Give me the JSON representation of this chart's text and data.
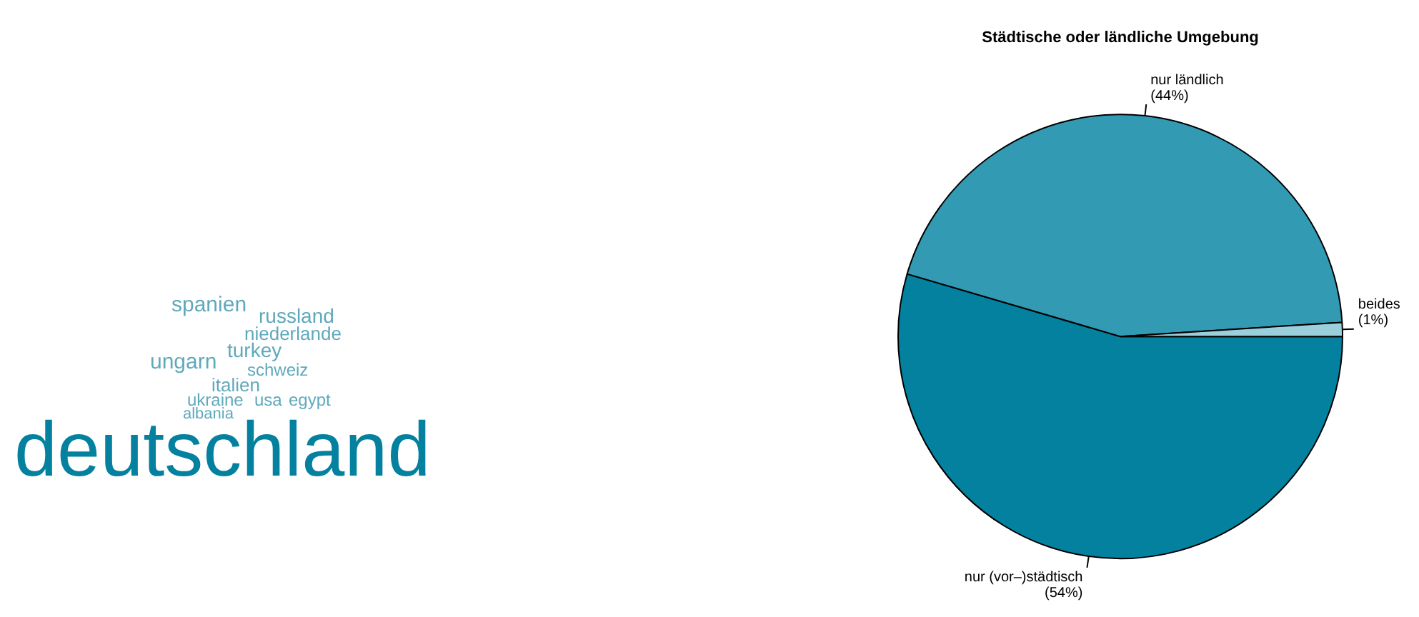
{
  "chart_data": [
    {
      "type": "other",
      "annotations": [
        "spanien",
        "russland",
        "niederlande",
        "turkey",
        "ungarn",
        "schweiz",
        "italien",
        "ukraine",
        "usa",
        "egypt",
        "albania",
        "deutschland"
      ]
    },
    {
      "type": "pie",
      "title": "Städtische oder ländliche Umgebung",
      "categories": [
        "nur (vor–)städtisch",
        "nur ländlich",
        "beides"
      ],
      "values": [
        54,
        44,
        1
      ],
      "colors": [
        "#03819f",
        "#339ab4",
        "#9ccfdc"
      ],
      "value_labels": [
        "(54%)",
        "(44%)",
        "(1%)"
      ],
      "legend": false
    }
  ]
}
